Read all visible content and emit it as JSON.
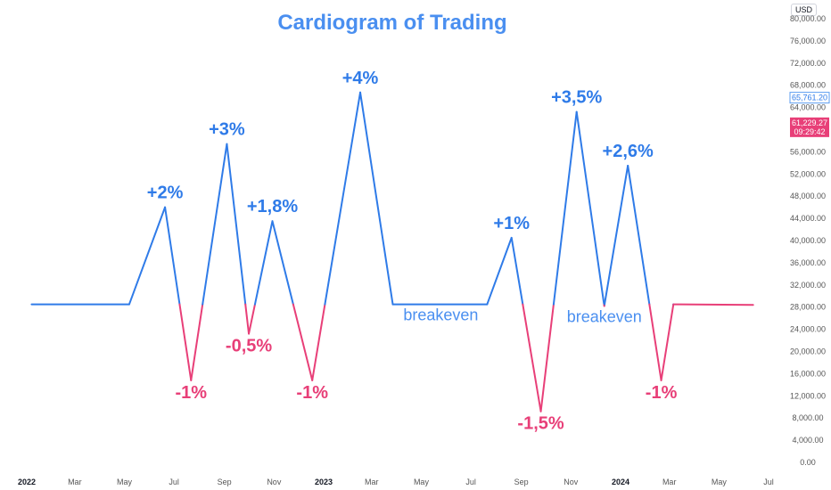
{
  "chart_data": {
    "type": "line",
    "title": "Cardiogram of Trading",
    "currency": "USD",
    "y_ticks": [
      "80,000.00",
      "76,000.00",
      "72,000.00",
      "68,000.00",
      "64,000.00",
      "60,000.00",
      "56,000.00",
      "52,000.00",
      "48,000.00",
      "44,000.00",
      "40,000.00",
      "36,000.00",
      "32,000.00",
      "28,000.00",
      "24,000.00",
      "20,000.00",
      "16,000.00",
      "12,000.00",
      "8,000.00",
      "4,000.00",
      "0.00"
    ],
    "ylim": [
      0,
      80000
    ],
    "x_ticks": [
      {
        "label": "2022",
        "bold": true,
        "date": "2022-01-01"
      },
      {
        "label": "Mar",
        "bold": false,
        "date": "2022-03-01"
      },
      {
        "label": "May",
        "bold": false,
        "date": "2022-05-01"
      },
      {
        "label": "Jul",
        "bold": false,
        "date": "2022-07-01"
      },
      {
        "label": "Sep",
        "bold": false,
        "date": "2022-09-01"
      },
      {
        "label": "Nov",
        "bold": false,
        "date": "2022-11-01"
      },
      {
        "label": "2023",
        "bold": true,
        "date": "2023-01-01"
      },
      {
        "label": "Mar",
        "bold": false,
        "date": "2023-03-01"
      },
      {
        "label": "May",
        "bold": false,
        "date": "2023-05-01"
      },
      {
        "label": "Jul",
        "bold": false,
        "date": "2023-07-01"
      },
      {
        "label": "Sep",
        "bold": false,
        "date": "2023-09-01"
      },
      {
        "label": "Nov",
        "bold": false,
        "date": "2023-11-01"
      },
      {
        "label": "2024",
        "bold": true,
        "date": "2024-01-01"
      },
      {
        "label": "Mar",
        "bold": false,
        "date": "2024-03-01"
      },
      {
        "label": "May",
        "bold": false,
        "date": "2024-05-01"
      },
      {
        "label": "Jul",
        "bold": false,
        "date": "2024-07-01"
      }
    ],
    "xlim": [
      "2022-01-01",
      "2024-07-01"
    ],
    "baseline": 28500,
    "series": [
      {
        "points": [
          {
            "x": "2022-01-07",
            "y": 28500
          },
          {
            "x": "2022-05-07",
            "y": 28500
          },
          {
            "x": "2022-06-20",
            "y": 46000
          },
          {
            "x": "2022-07-22",
            "y": 14800
          },
          {
            "x": "2022-09-04",
            "y": 57400
          },
          {
            "x": "2022-10-01",
            "y": 23200
          },
          {
            "x": "2022-10-30",
            "y": 43500
          },
          {
            "x": "2022-12-18",
            "y": 14800
          },
          {
            "x": "2023-02-15",
            "y": 66700
          },
          {
            "x": "2023-03-27",
            "y": 28500
          },
          {
            "x": "2023-07-21",
            "y": 28500
          },
          {
            "x": "2023-08-20",
            "y": 40500
          },
          {
            "x": "2023-09-25",
            "y": 9200
          },
          {
            "x": "2023-11-08",
            "y": 63200
          },
          {
            "x": "2023-12-12",
            "y": 28200
          },
          {
            "x": "2024-01-10",
            "y": 53500
          },
          {
            "x": "2024-02-20",
            "y": 14800
          },
          {
            "x": "2024-03-06",
            "y": 28500
          },
          {
            "x": "2024-06-12",
            "y": 28400
          }
        ]
      }
    ],
    "annotations": [
      {
        "text": "+2%",
        "x": "2022-06-20",
        "y": 46000,
        "kind": "gain"
      },
      {
        "text": "+3%",
        "x": "2022-09-04",
        "y": 57400,
        "kind": "gain"
      },
      {
        "text": "+1,8%",
        "x": "2022-10-30",
        "y": 43500,
        "kind": "gain"
      },
      {
        "text": "+4%",
        "x": "2023-02-15",
        "y": 66700,
        "kind": "gain"
      },
      {
        "text": "+1%",
        "x": "2023-08-20",
        "y": 40500,
        "kind": "gain"
      },
      {
        "text": "+3,5%",
        "x": "2023-11-08",
        "y": 63200,
        "kind": "gain"
      },
      {
        "text": "+2,6%",
        "x": "2024-01-10",
        "y": 53500,
        "kind": "gain"
      },
      {
        "text": "-1%",
        "x": "2022-07-22",
        "y": 14800,
        "kind": "loss"
      },
      {
        "text": "-0,5%",
        "x": "2022-10-01",
        "y": 23200,
        "kind": "loss"
      },
      {
        "text": "-1%",
        "x": "2022-12-18",
        "y": 14800,
        "kind": "loss"
      },
      {
        "text": "-1,5%",
        "x": "2023-09-25",
        "y": 9200,
        "kind": "loss"
      },
      {
        "text": "-1%",
        "x": "2024-02-20",
        "y": 14800,
        "kind": "loss"
      },
      {
        "text": "breakeven",
        "x": "2023-05-25",
        "y": 28500,
        "kind": "even"
      },
      {
        "text": "breakeven",
        "x": "2023-12-12",
        "y": 28200,
        "kind": "even"
      }
    ],
    "price_labels": [
      {
        "value": 65761.2,
        "text": "65,761.20",
        "style": "outline"
      },
      {
        "value": 61229.27,
        "text": "61,229.27",
        "sub": "09:29:42",
        "style": "filled"
      }
    ],
    "colors": {
      "gain": "#2f7be8",
      "loss": "#e83f78",
      "title": "#4a8ff0",
      "axis_text": "#555555"
    }
  }
}
